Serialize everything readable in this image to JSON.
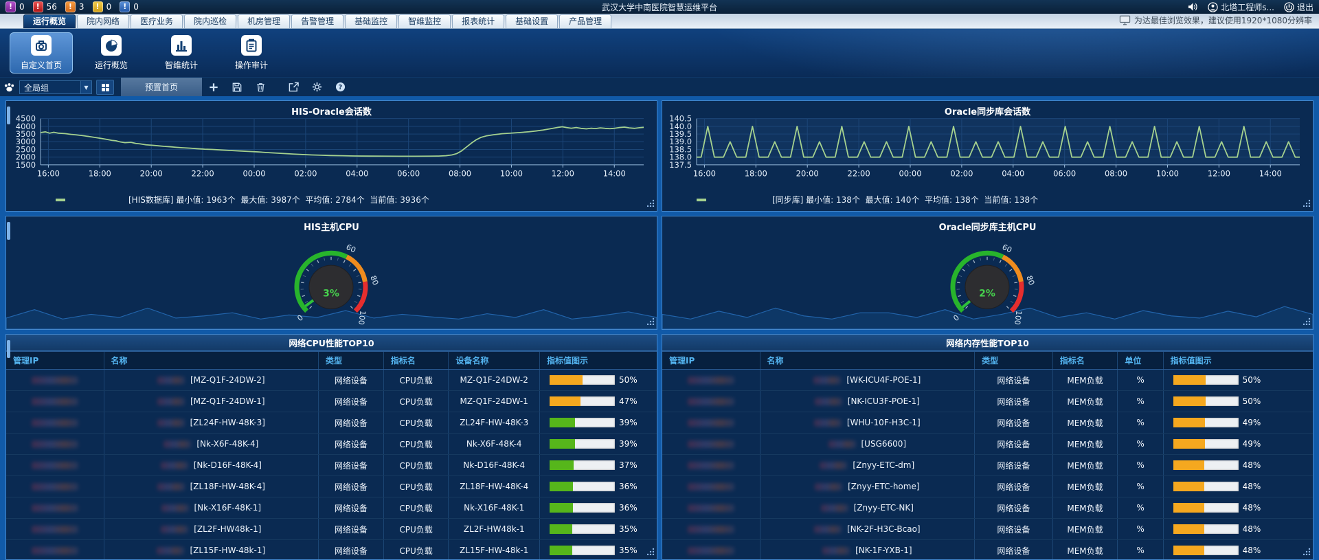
{
  "topbar": {
    "title": "武汉大学中南医院智慧运维平台",
    "alerts": [
      {
        "name": "alert-critical-purple",
        "count": "0",
        "c1": "#b052c9",
        "c2": "#7a1f96"
      },
      {
        "name": "alert-major-red",
        "count": "56",
        "c1": "#e85050",
        "c2": "#b01616"
      },
      {
        "name": "alert-minor-orange",
        "count": "3",
        "c1": "#f59a3e",
        "c2": "#d2691a"
      },
      {
        "name": "alert-warning-yellow",
        "count": "0",
        "c1": "#f0ca4a",
        "c2": "#cf9e16"
      },
      {
        "name": "alert-info-blue",
        "count": "0",
        "c1": "#5a8fd8",
        "c2": "#2257a8"
      }
    ],
    "user": "北塔工程师s...",
    "logout": "退出"
  },
  "tabbar": {
    "tabs": [
      "运行概览",
      "院内网络",
      "医疗业务",
      "院内巡检",
      "机房管理",
      "告警管理",
      "基础监控",
      "智维监控",
      "报表统计",
      "基础设置",
      "产品管理"
    ],
    "active_tab": "运行概览",
    "tip": "为达最佳浏览效果，建议使用1920*1080分辨率"
  },
  "menubar": {
    "items": [
      {
        "label": "自定义首页",
        "icon": "custom-home-icon",
        "active": true
      },
      {
        "label": "运行概览",
        "icon": "pie-chart-icon",
        "active": false
      },
      {
        "label": "智维统计",
        "icon": "bar-stats-icon",
        "active": false
      },
      {
        "label": "操作审计",
        "icon": "audit-clipboard-icon",
        "active": false
      }
    ]
  },
  "toolbar": {
    "group_select": "全局组",
    "page_tab": "预置首页",
    "icon_names": [
      "group-paw-icon",
      "layout-grid-icon",
      "add-icon",
      "save-icon",
      "delete-icon",
      "export-icon",
      "settings-icon",
      "help-icon"
    ]
  },
  "panels": {
    "chart1": {
      "type": "line",
      "title": "HIS-Oracle会话数",
      "stats": "[HIS数据库] 最小值: 1963个  最大值: 3987个  平均值: 2784个  当前值: 3936个",
      "color": "#a5d18e",
      "ylim": [
        1500,
        4500
      ],
      "y_ticks": [
        "4500",
        "4000",
        "3500",
        "3000",
        "2500",
        "2000",
        "1500"
      ],
      "x_ticks": [
        "16:00",
        "18:00",
        "20:00",
        "22:00",
        "00:00",
        "02:00",
        "04:00",
        "06:00",
        "08:00",
        "10:00",
        "12:00",
        "14:00"
      ],
      "points": [
        [
          0,
          3590
        ],
        [
          0.008,
          3645
        ],
        [
          0.015,
          3555
        ],
        [
          0.022,
          3615
        ],
        [
          0.03,
          3555
        ],
        [
          0.04,
          3530
        ],
        [
          0.05,
          3480
        ],
        [
          0.06,
          3440
        ],
        [
          0.07,
          3395
        ],
        [
          0.08,
          3340
        ],
        [
          0.09,
          3280
        ],
        [
          0.1,
          3215
        ],
        [
          0.11,
          3150
        ],
        [
          0.118,
          3090
        ],
        [
          0.125,
          3060
        ],
        [
          0.132,
          2985
        ],
        [
          0.14,
          2940
        ],
        [
          0.15,
          2960
        ],
        [
          0.158,
          2890
        ],
        [
          0.165,
          2860
        ],
        [
          0.175,
          2800
        ],
        [
          0.185,
          2770
        ],
        [
          0.195,
          2735
        ],
        [
          0.205,
          2700
        ],
        [
          0.215,
          2672
        ],
        [
          0.225,
          2640
        ],
        [
          0.235,
          2610
        ],
        [
          0.248,
          2580
        ],
        [
          0.26,
          2545
        ],
        [
          0.272,
          2515
        ],
        [
          0.285,
          2495
        ],
        [
          0.3,
          2460
        ],
        [
          0.315,
          2430
        ],
        [
          0.33,
          2400
        ],
        [
          0.345,
          2370
        ],
        [
          0.36,
          2340
        ],
        [
          0.375,
          2300
        ],
        [
          0.39,
          2265
        ],
        [
          0.405,
          2230
        ],
        [
          0.42,
          2195
        ],
        [
          0.435,
          2165
        ],
        [
          0.45,
          2140
        ],
        [
          0.465,
          2120
        ],
        [
          0.48,
          2105
        ],
        [
          0.5,
          2090
        ],
        [
          0.52,
          2075
        ],
        [
          0.545,
          2065
        ],
        [
          0.57,
          2060
        ],
        [
          0.595,
          2055
        ],
        [
          0.62,
          2055
        ],
        [
          0.645,
          2060
        ],
        [
          0.66,
          2070
        ],
        [
          0.672,
          2090
        ],
        [
          0.682,
          2140
        ],
        [
          0.69,
          2230
        ],
        [
          0.698,
          2400
        ],
        [
          0.706,
          2650
        ],
        [
          0.714,
          2900
        ],
        [
          0.722,
          3120
        ],
        [
          0.73,
          3280
        ],
        [
          0.74,
          3390
        ],
        [
          0.752,
          3460
        ],
        [
          0.765,
          3520
        ],
        [
          0.78,
          3560
        ],
        [
          0.795,
          3600
        ],
        [
          0.81,
          3650
        ],
        [
          0.822,
          3700
        ],
        [
          0.833,
          3760
        ],
        [
          0.842,
          3820
        ],
        [
          0.85,
          3880
        ],
        [
          0.858,
          3930
        ],
        [
          0.865,
          3970
        ],
        [
          0.872,
          3920
        ],
        [
          0.88,
          3880
        ],
        [
          0.888,
          3920
        ],
        [
          0.896,
          3870
        ],
        [
          0.905,
          3840
        ],
        [
          0.913,
          3880
        ],
        [
          0.92,
          3855
        ],
        [
          0.928,
          3900
        ],
        [
          0.936,
          3870
        ],
        [
          0.944,
          3845
        ],
        [
          0.952,
          3880
        ],
        [
          0.96,
          3920
        ],
        [
          0.968,
          3950
        ],
        [
          0.976,
          3900
        ],
        [
          0.985,
          3870
        ],
        [
          0.993,
          3910
        ],
        [
          1,
          3936
        ]
      ]
    },
    "chart2": {
      "type": "line",
      "title": "Oracle同步库会话数",
      "stats": "[同步库] 最小值: 138个  最大值: 140个  平均值: 138个  当前值: 138个",
      "color": "#a5d18e",
      "plot_bg": "#10335e",
      "ylim": [
        137.5,
        140.5
      ],
      "y_ticks": [
        "140.5",
        "140.0",
        "139.5",
        "139.0",
        "138.5",
        "138.0",
        "137.5"
      ],
      "x_ticks": [
        "16:00",
        "18:00",
        "20:00",
        "22:00",
        "00:00",
        "02:00",
        "04:00",
        "06:00",
        "08:00",
        "10:00",
        "12:00",
        "14:00"
      ],
      "baseline": 138,
      "spikes": [
        140,
        139,
        140,
        139,
        140,
        139,
        140,
        139,
        139,
        140,
        139,
        140,
        139,
        139,
        140,
        139,
        140,
        139,
        140,
        139,
        140,
        139,
        140,
        139,
        140,
        139,
        139
      ]
    },
    "gauge_axis": {
      "labels": [
        "0",
        "60",
        "80",
        "100"
      ],
      "values": [
        0,
        60,
        80,
        100
      ],
      "zones": [
        {
          "from": 0,
          "to": 60,
          "color": "#28b42c"
        },
        {
          "from": 60,
          "to": 80,
          "color": "#f08c1e"
        },
        {
          "from": 80,
          "to": 100,
          "color": "#e62e2e"
        }
      ]
    },
    "gauge1": {
      "type": "gauge",
      "title": "HIS主机CPU",
      "value": 3,
      "display": "3%",
      "area": [
        0.18,
        0.45,
        0.15,
        0.3,
        0.2,
        0.5,
        0.18,
        0.25,
        0.35,
        0.15,
        0.28,
        0.2,
        0.42,
        0.18,
        0.3,
        0.22,
        0.15,
        0.32,
        0.2,
        0.45,
        0.15,
        0.25,
        0.38,
        0.2
      ]
    },
    "gauge2": {
      "type": "gauge",
      "title": "Oracle同步库主机CPU",
      "value": 2,
      "display": "2%",
      "area": [
        0.3,
        0.15,
        0.4,
        0.2,
        0.5,
        0.25,
        0.15,
        0.35,
        0.35,
        0.2,
        0.45,
        0.15,
        0.3,
        0.5,
        0.2,
        0.35,
        0.15,
        0.42,
        0.25,
        0.18,
        0.4,
        0.22,
        0.55,
        0.3
      ]
    },
    "table1": {
      "title": "网络CPU性能TOP10",
      "headers": [
        "管理IP",
        "名称",
        "类型",
        "指标名",
        "设备名称",
        "指标值图示"
      ],
      "rows": [
        {
          "name": "[MZ-Q1F-24DW-2]",
          "type": "网络设备",
          "metric": "CPU负载",
          "device": "MZ-Q1F-24DW-2",
          "value": 50,
          "pct": "50%",
          "bar": "#f5a81f"
        },
        {
          "name": "[MZ-Q1F-24DW-1]",
          "type": "网络设备",
          "metric": "CPU负载",
          "device": "MZ-Q1F-24DW-1",
          "value": 47,
          "pct": "47%",
          "bar": "#f5a81f"
        },
        {
          "name": "[ZL24F-HW-48K-3]",
          "type": "网络设备",
          "metric": "CPU负载",
          "device": "ZL24F-HW-48K-3",
          "value": 39,
          "pct": "39%",
          "bar": "#56b61b"
        },
        {
          "name": "[Nk-X6F-48K-4]",
          "type": "网络设备",
          "metric": "CPU负载",
          "device": "Nk-X6F-48K-4",
          "value": 39,
          "pct": "39%",
          "bar": "#56b61b"
        },
        {
          "name": "[Nk-D16F-48K-4]",
          "type": "网络设备",
          "metric": "CPU负载",
          "device": "Nk-D16F-48K-4",
          "value": 37,
          "pct": "37%",
          "bar": "#56b61b"
        },
        {
          "name": "[ZL18F-HW-48K-4]",
          "type": "网络设备",
          "metric": "CPU负载",
          "device": "ZL18F-HW-48K-4",
          "value": 36,
          "pct": "36%",
          "bar": "#56b61b"
        },
        {
          "name": "[Nk-X16F-48K-1]",
          "type": "网络设备",
          "metric": "CPU负载",
          "device": "Nk-X16F-48K-1",
          "value": 36,
          "pct": "36%",
          "bar": "#56b61b"
        },
        {
          "name": "[ZL2F-HW48k-1]",
          "type": "网络设备",
          "metric": "CPU负载",
          "device": "ZL2F-HW48k-1",
          "value": 35,
          "pct": "35%",
          "bar": "#56b61b"
        },
        {
          "name": "[ZL15F-HW-48k-1]",
          "type": "网络设备",
          "metric": "CPU负载",
          "device": "ZL15F-HW-48k-1",
          "value": 35,
          "pct": "35%",
          "bar": "#56b61b"
        }
      ]
    },
    "table2": {
      "title": "网络内存性能TOP10",
      "headers": [
        "管理IP",
        "名称",
        "类型",
        "指标名",
        "单位",
        "指标值图示"
      ],
      "rows": [
        {
          "name": "[WK-ICU4F-POE-1]",
          "type": "网络设备",
          "metric": "MEM负载",
          "unit": "%",
          "value": 50,
          "pct": "50%",
          "bar": "#f5a81f"
        },
        {
          "name": "[NK-ICU3F-POE-1]",
          "type": "网络设备",
          "metric": "MEM负载",
          "unit": "%",
          "value": 50,
          "pct": "50%",
          "bar": "#f5a81f"
        },
        {
          "name": "[WHU-10F-H3C-1]",
          "type": "网络设备",
          "metric": "MEM负载",
          "unit": "%",
          "value": 49,
          "pct": "49%",
          "bar": "#f5a81f"
        },
        {
          "name": "[USG6600]",
          "type": "网络设备",
          "metric": "MEM负载",
          "unit": "%",
          "value": 49,
          "pct": "49%",
          "bar": "#f5a81f"
        },
        {
          "name": "[Znyy-ETC-dm]",
          "type": "网络设备",
          "metric": "MEM负载",
          "unit": "%",
          "value": 48,
          "pct": "48%",
          "bar": "#f5a81f"
        },
        {
          "name": "[Znyy-ETC-home]",
          "type": "网络设备",
          "metric": "MEM负载",
          "unit": "%",
          "value": 48,
          "pct": "48%",
          "bar": "#f5a81f"
        },
        {
          "name": "[Znyy-ETC-NK]",
          "type": "网络设备",
          "metric": "MEM负载",
          "unit": "%",
          "value": 48,
          "pct": "48%",
          "bar": "#f5a81f"
        },
        {
          "name": "[NK-2F-H3C-Bcao]",
          "type": "网络设备",
          "metric": "MEM负载",
          "unit": "%",
          "value": 48,
          "pct": "48%",
          "bar": "#f5a81f"
        },
        {
          "name": "[NK-1F-YXB-1]",
          "type": "网络设备",
          "metric": "MEM负载",
          "unit": "%",
          "value": 48,
          "pct": "48%",
          "bar": "#f5a81f"
        }
      ]
    }
  }
}
